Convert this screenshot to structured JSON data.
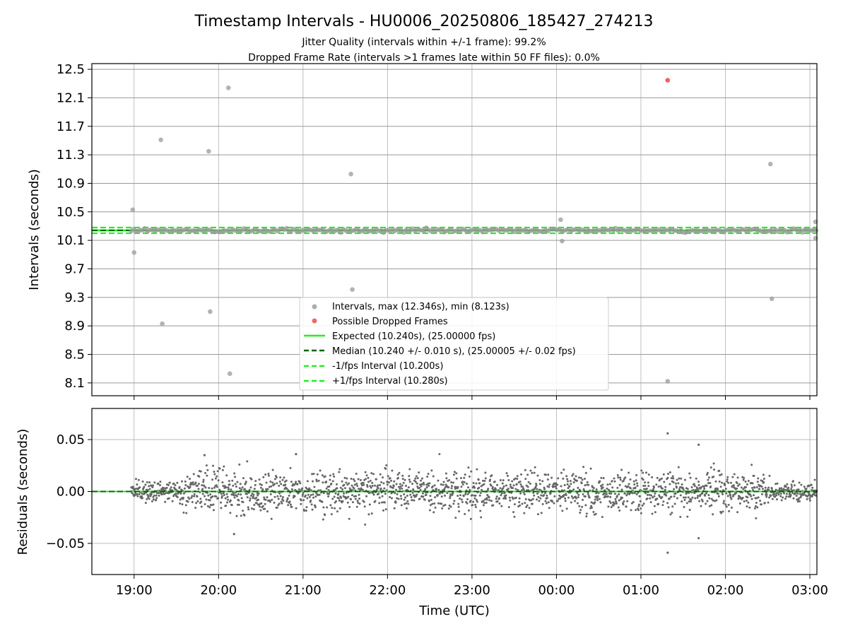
{
  "chart_data": [
    {
      "type": "scatter",
      "title": "Timestamp Intervals - HU0006_20250806_185427_274213",
      "subtitle_lines": [
        "Jitter Quality (intervals within +/-1 frame): 99.2%",
        "Dropped Frame Rate (intervals >1 frames late within 50 FF files): 0.0%"
      ],
      "xlabel": "",
      "ylabel": "Intervals (seconds)",
      "xlim": [
        "18:30",
        "03:05"
      ],
      "ylim": [
        7.92,
        12.58
      ],
      "yticks": [
        "8.1",
        "8.5",
        "8.9",
        "9.3",
        "9.7",
        "10.1",
        "10.5",
        "10.9",
        "11.3",
        "11.7",
        "12.1",
        "12.5"
      ],
      "grid": true,
      "legend_position": "lower center",
      "legend": [
        "Intervals, max (12.346s), min (8.123s)",
        "Possible Dropped Frames",
        "Expected (10.240s), (25.00000 fps)",
        "Median (10.240 +/- 0.010 s), (25.00005 +/- 0.02 fps)",
        "-1/fps Interval (10.200s)",
        "+1/fps Interval (10.280s)"
      ],
      "reference_lines": [
        {
          "name": "Expected (10.240s), (25.00000 fps)",
          "y": 10.24,
          "color": "#22ee22",
          "style": "solid"
        },
        {
          "name": "Median (10.240 +/- 0.010 s), (25.00005 +/- 0.02 fps)",
          "y": 10.24,
          "color": "#006400",
          "style": "dashed"
        },
        {
          "name": "-1/fps Interval (10.200s)",
          "y": 10.2,
          "color": "#22ee22",
          "style": "dashed"
        },
        {
          "name": "+1/fps Interval (10.280s)",
          "y": 10.28,
          "color": "#22ee22",
          "style": "dashed"
        }
      ],
      "series": [
        {
          "name": "Intervals, max (12.346s), min (8.123s)",
          "color": "#999999",
          "band_center": 10.24,
          "band_time_range": [
            "18:58",
            "03:05"
          ],
          "outliers": [
            {
              "x": "18:59",
              "y": 10.53
            },
            {
              "x": "19:00",
              "y": 9.93
            },
            {
              "x": "19:19",
              "y": 11.51
            },
            {
              "x": "19:20",
              "y": 8.93
            },
            {
              "x": "19:53",
              "y": 11.35
            },
            {
              "x": "19:54",
              "y": 9.1
            },
            {
              "x": "20:07",
              "y": 12.24
            },
            {
              "x": "20:08",
              "y": 8.23
            },
            {
              "x": "21:34",
              "y": 11.03
            },
            {
              "x": "21:35",
              "y": 9.41
            },
            {
              "x": "00:03",
              "y": 10.39
            },
            {
              "x": "00:04",
              "y": 10.09
            },
            {
              "x": "01:19",
              "y": 8.123
            },
            {
              "x": "02:32",
              "y": 11.17
            },
            {
              "x": "02:33",
              "y": 9.28
            },
            {
              "x": "03:04",
              "y": 10.36
            },
            {
              "x": "03:04",
              "y": 10.13
            }
          ]
        },
        {
          "name": "Possible Dropped Frames",
          "color": "#ee4444",
          "points": [
            {
              "x": "01:19",
              "y": 12.346
            }
          ]
        }
      ]
    },
    {
      "type": "scatter",
      "title": "",
      "xlabel": "Time (UTC)",
      "ylabel": "Residuals (seconds)",
      "xlim": [
        "18:30",
        "03:05"
      ],
      "ylim": [
        -0.08,
        0.08
      ],
      "yticks": [
        "−0.05",
        "0.00",
        "0.05"
      ],
      "xticks": [
        "19:00",
        "20:00",
        "21:00",
        "22:00",
        "23:00",
        "00:00",
        "01:00",
        "02:00",
        "03:00"
      ],
      "grid": true,
      "reference_lines": [
        {
          "y": 0.0,
          "color": "#22ee22",
          "style": "solid"
        },
        {
          "y": 0.0,
          "color": "#006400",
          "style": "dashed"
        }
      ],
      "series": [
        {
          "color": "#666666",
          "time_range": [
            "18:58",
            "03:05"
          ],
          "approx_spread_sd": 0.01,
          "extremes": [
            {
              "x": "01:19",
              "y": 0.056
            },
            {
              "x": "01:19",
              "y": -0.059
            },
            {
              "x": "01:41",
              "y": 0.045
            },
            {
              "x": "01:41",
              "y": -0.045
            },
            {
              "x": "20:11",
              "y": -0.041
            },
            {
              "x": "19:50",
              "y": 0.035
            },
            {
              "x": "20:55",
              "y": 0.036
            }
          ]
        }
      ]
    }
  ]
}
